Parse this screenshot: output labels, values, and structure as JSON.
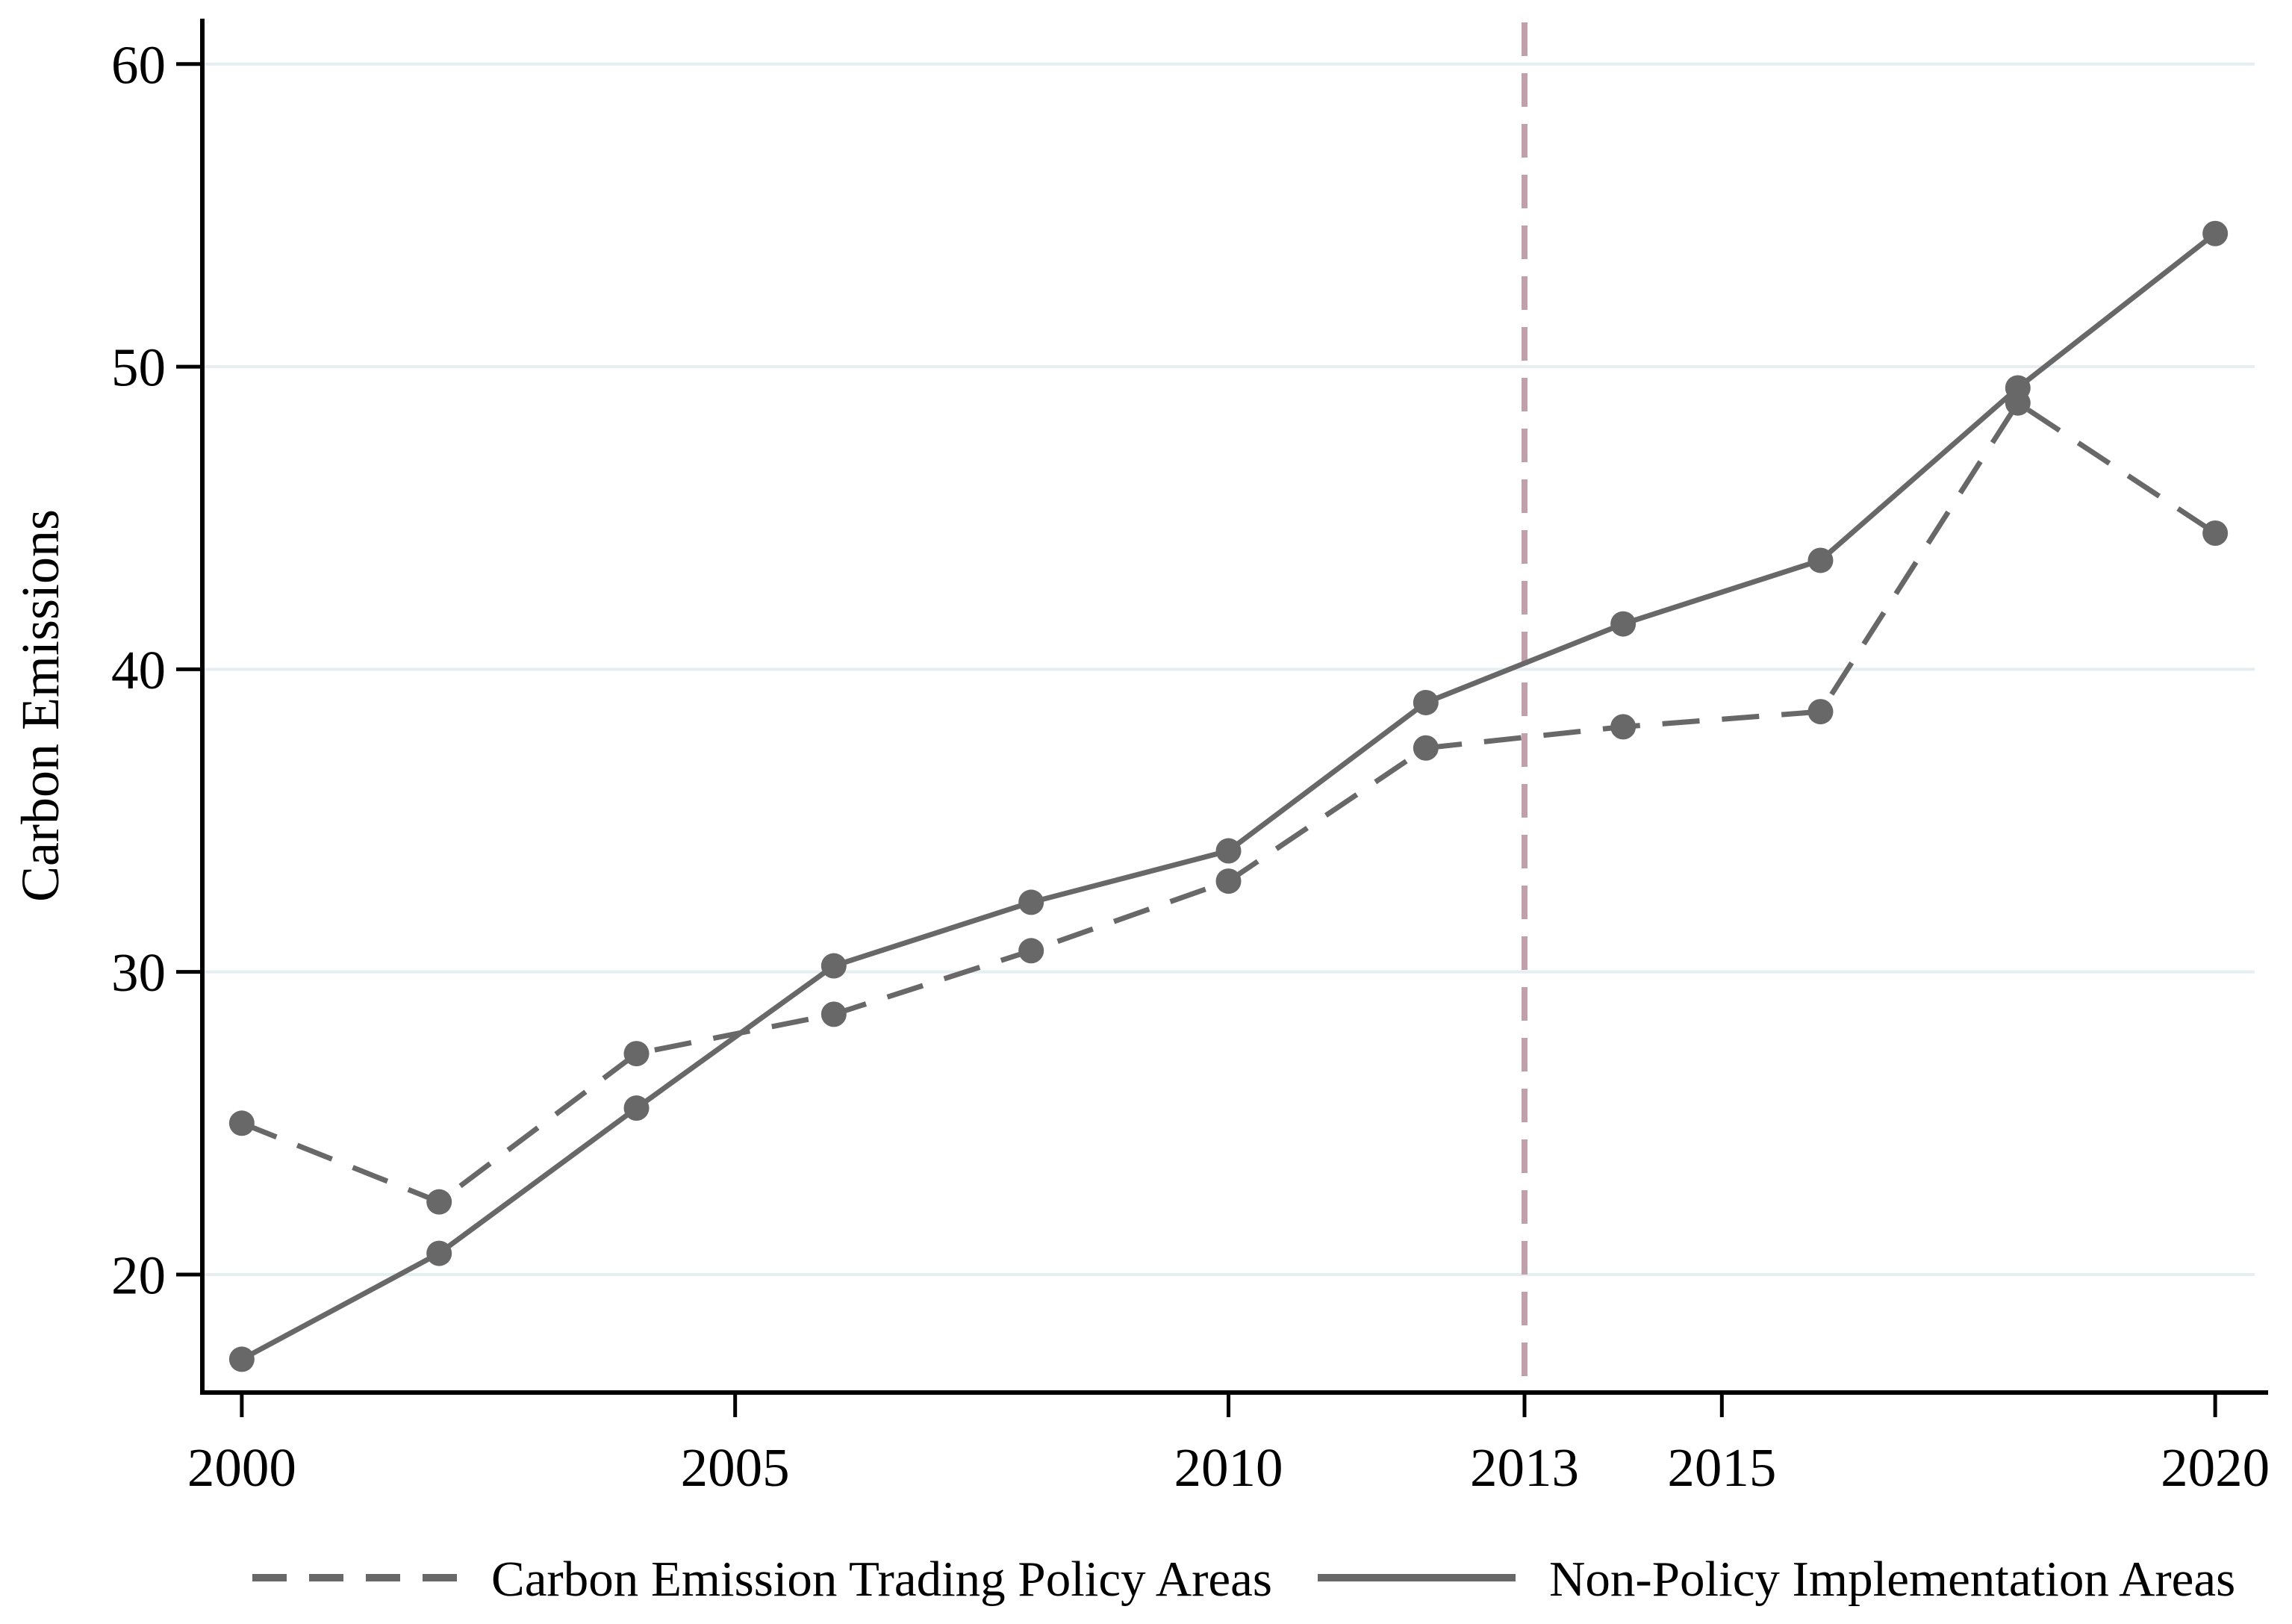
{
  "chart_data": {
    "type": "line",
    "title": "",
    "xlabel": "",
    "ylabel": "Carbon Emissions",
    "x": [
      2000,
      2002,
      2004,
      2006,
      2008,
      2010,
      2012,
      2014,
      2016,
      2018,
      2020
    ],
    "series": [
      {
        "name": "Carbon Emission Trading Policy Areas",
        "line_style": "dashed",
        "values": [
          25.0,
          22.4,
          27.3,
          28.6,
          30.7,
          33.0,
          37.4,
          38.1,
          38.6,
          48.8,
          44.5
        ]
      },
      {
        "name": "Non-Policy Implementation Areas",
        "line_style": "solid",
        "values": [
          17.2,
          20.7,
          25.5,
          30.2,
          32.3,
          34.0,
          38.9,
          41.5,
          43.6,
          49.3,
          54.4
        ]
      }
    ],
    "x_tick_labels": [
      2000,
      2005,
      2010,
      2013,
      2015,
      2020
    ],
    "y_tick_labels": [
      20,
      30,
      40,
      50,
      60
    ],
    "xlim": [
      1999.6,
      2020.4
    ],
    "ylim": [
      16.1,
      61.5
    ],
    "reference_line_x": 2013,
    "grid": "horizontal",
    "legend_position": "bottom",
    "marker": "circle",
    "colors": {
      "series": "#686868",
      "grid": "#e6eef1",
      "axis": "#000000",
      "reference_line": "#bfa0ab",
      "background": "#ffffff"
    }
  }
}
